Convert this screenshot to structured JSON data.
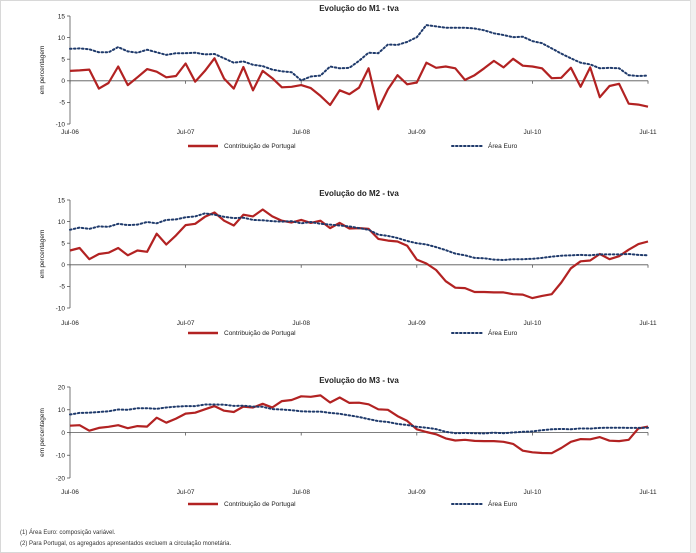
{
  "colors": {
    "portugal": "#b22222",
    "euro": "#1f3a6b",
    "axis": "#555555"
  },
  "chart_data": [
    {
      "type": "line",
      "title": "Evolução do M1 - tva",
      "ylabel": "em percentagem",
      "ylim": [
        -10,
        15
      ],
      "yticks": [
        15,
        10,
        5,
        0,
        -5,
        -10
      ],
      "xlim": [
        0,
        60
      ],
      "xticks": [
        {
          "x": 0,
          "label": "Jul-06"
        },
        {
          "x": 12,
          "label": "Jul-07"
        },
        {
          "x": 24,
          "label": "Jul-08"
        },
        {
          "x": 36,
          "label": "Jul-09"
        },
        {
          "x": 48,
          "label": "Jul-10"
        },
        {
          "x": 60,
          "label": "Jul-11"
        }
      ],
      "series": [
        {
          "name": "Contribuição de Portugal",
          "style": "solid",
          "values": [
            2.3,
            2.4,
            2.6,
            -1.8,
            -0.5,
            3.3,
            -1.0,
            0.8,
            2.7,
            2.1,
            0.8,
            1.1,
            4.0,
            -0.2,
            2.3,
            5.2,
            0.5,
            -1.8,
            3.2,
            -2.2,
            2.3,
            0.6,
            -1.5,
            -1.4,
            -1.0,
            -1.7,
            -3.5,
            -5.6,
            -2.2,
            -3.1,
            -1.6,
            2.9,
            -6.6,
            -2.0,
            1.3,
            -0.8,
            -0.4,
            4.2,
            3.0,
            3.3,
            2.9,
            0.2,
            1.3,
            2.9,
            4.6,
            3.1,
            5.1,
            3.5,
            3.3,
            2.9,
            0.6,
            0.7,
            3.0,
            -1.4,
            3.1,
            -3.8,
            -1.2,
            -0.7,
            -5.3,
            -5.5,
            -6.0
          ]
        },
        {
          "name": "Área Euro",
          "style": "dotted",
          "values": [
            7.4,
            7.5,
            7.3,
            6.6,
            6.6,
            7.8,
            6.8,
            6.5,
            7.2,
            6.6,
            6.0,
            6.4,
            6.4,
            6.5,
            6.1,
            6.2,
            5.2,
            4.2,
            4.5,
            3.7,
            3.4,
            2.6,
            2.2,
            2.0,
            0.1,
            1.0,
            1.2,
            3.3,
            2.9,
            3.0,
            4.6,
            6.5,
            6.4,
            8.4,
            8.3,
            9.0,
            10.1,
            12.9,
            12.6,
            12.3,
            12.3,
            12.3,
            12.1,
            11.7,
            11.0,
            10.6,
            10.1,
            10.2,
            9.2,
            8.7,
            7.5,
            6.3,
            5.2,
            4.2,
            3.8,
            2.9,
            3.0,
            2.9,
            1.3,
            1.1,
            1.2
          ]
        }
      ]
    },
    {
      "type": "line",
      "title": "Evolução do M2 - tva",
      "ylabel": "em percentagem",
      "ylim": [
        -10,
        15
      ],
      "yticks": [
        15,
        10,
        5,
        0,
        -5,
        -10
      ],
      "xlim": [
        0,
        60
      ],
      "xticks": [
        {
          "x": 0,
          "label": "Jul-06"
        },
        {
          "x": 12,
          "label": "Jul-07"
        },
        {
          "x": 24,
          "label": "Jul-08"
        },
        {
          "x": 36,
          "label": "Jul-09"
        },
        {
          "x": 48,
          "label": "Jul-10"
        },
        {
          "x": 60,
          "label": "Jul-11"
        }
      ],
      "series": [
        {
          "name": "Contribuição de Portugal",
          "style": "solid",
          "values": [
            3.3,
            3.9,
            1.3,
            2.5,
            2.8,
            3.9,
            2.2,
            3.3,
            3.0,
            7.2,
            4.7,
            6.8,
            9.2,
            9.5,
            11.1,
            12.1,
            10.2,
            9.1,
            11.6,
            11.2,
            12.8,
            11.2,
            10.2,
            9.8,
            10.4,
            9.7,
            10.2,
            8.5,
            9.7,
            8.4,
            8.5,
            8.3,
            6.0,
            5.6,
            5.4,
            4.4,
            1.2,
            0.3,
            -1.2,
            -3.8,
            -5.3,
            -5.4,
            -6.3,
            -6.3,
            -6.4,
            -6.4,
            -6.8,
            -6.9,
            -7.7,
            -7.2,
            -6.8,
            -4.1,
            -0.8,
            0.8,
            1.0,
            2.5,
            1.3,
            2.0,
            3.5,
            4.8,
            5.4
          ]
        },
        {
          "name": "Área Euro",
          "style": "dotted",
          "values": [
            8.1,
            8.6,
            8.3,
            8.9,
            8.8,
            9.5,
            9.2,
            9.3,
            9.9,
            9.6,
            10.4,
            10.5,
            11.0,
            11.2,
            11.9,
            11.6,
            11.1,
            10.8,
            10.9,
            10.4,
            10.3,
            10.1,
            10.0,
            10.1,
            9.6,
            9.9,
            9.5,
            9.3,
            9.1,
            8.9,
            8.5,
            8.1,
            7.0,
            6.7,
            6.2,
            5.5,
            5.0,
            4.7,
            4.1,
            3.4,
            2.6,
            2.2,
            1.6,
            1.5,
            1.2,
            1.1,
            1.3,
            1.3,
            1.4,
            1.6,
            1.9,
            2.1,
            2.2,
            2.3,
            2.2,
            2.4,
            2.4,
            2.4,
            2.5,
            2.3,
            2.2
          ]
        }
      ]
    },
    {
      "type": "line",
      "title": "Evolução do M3 - tva",
      "ylabel": "em percentagem",
      "ylim": [
        -20,
        20
      ],
      "yticks": [
        20,
        10,
        0,
        -10,
        -20
      ],
      "xlim": [
        0,
        60
      ],
      "xticks": [
        {
          "x": 0,
          "label": "Jul-06"
        },
        {
          "x": 12,
          "label": "Jul-07"
        },
        {
          "x": 24,
          "label": "Jul-08"
        },
        {
          "x": 36,
          "label": "Jul-09"
        },
        {
          "x": 48,
          "label": "Jul-10"
        },
        {
          "x": 60,
          "label": "Jul-11"
        }
      ],
      "series": [
        {
          "name": "Contribuição de Portugal",
          "style": "solid",
          "values": [
            3.0,
            3.2,
            0.8,
            2.0,
            2.5,
            3.2,
            1.9,
            2.8,
            2.6,
            6.5,
            4.3,
            6.1,
            8.3,
            8.7,
            10.2,
            11.6,
            9.6,
            9.0,
            11.4,
            11.0,
            12.6,
            11.0,
            13.8,
            14.3,
            15.9,
            15.7,
            16.3,
            13.2,
            15.4,
            13.0,
            13.1,
            12.4,
            10.2,
            10.0,
            7.2,
            5.1,
            1.4,
            0.2,
            -0.8,
            -2.6,
            -3.5,
            -3.2,
            -3.7,
            -3.8,
            -3.8,
            -4.1,
            -5.0,
            -8.0,
            -8.7,
            -9.0,
            -9.1,
            -6.8,
            -4.1,
            -2.9,
            -3.0,
            -2.0,
            -3.6,
            -3.8,
            -3.2,
            1.8,
            2.6
          ]
        },
        {
          "name": "Área Euro",
          "style": "dotted",
          "values": [
            7.9,
            8.6,
            8.7,
            9.0,
            9.3,
            10.1,
            10.0,
            10.7,
            10.7,
            10.4,
            11.0,
            11.4,
            11.6,
            11.6,
            12.3,
            12.3,
            12.2,
            11.7,
            11.8,
            11.4,
            11.3,
            10.3,
            10.1,
            9.8,
            9.3,
            9.2,
            9.2,
            8.6,
            8.2,
            7.5,
            6.8,
            5.9,
            5.0,
            4.6,
            3.8,
            3.3,
            2.5,
            2.1,
            1.5,
            0.3,
            -0.3,
            -0.2,
            -0.3,
            -0.4,
            -0.1,
            -0.3,
            0.0,
            0.3,
            0.5,
            1.0,
            1.4,
            1.6,
            1.4,
            1.8,
            1.7,
            2.0,
            2.1,
            2.1,
            2.0,
            2.0,
            2.1
          ]
        }
      ]
    }
  ],
  "footnotes": [
    "(1) Área Euro: composição variável.",
    "(2) Para Portugal, os agregados apresentados excluem a circulação monetária."
  ]
}
